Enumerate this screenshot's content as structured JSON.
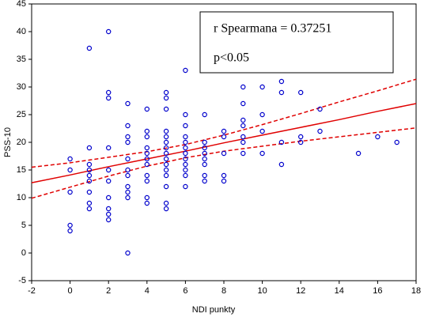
{
  "chart_data": {
    "type": "scatter",
    "xlabel": "NDI punkty",
    "ylabel": "PSS-10",
    "xlim": [
      -2,
      18
    ],
    "ylim": [
      -5,
      45
    ],
    "xticks": [
      -2,
      0,
      2,
      4,
      6,
      8,
      10,
      12,
      14,
      16,
      18
    ],
    "yticks": [
      -5,
      0,
      5,
      10,
      15,
      20,
      25,
      30,
      35,
      40,
      45
    ],
    "annotations": [
      "r Spearmana = 0.37251",
      "p<0.05"
    ],
    "points": {
      "color": "#0000cc",
      "x": [
        0,
        0,
        0,
        0,
        0,
        1,
        1,
        1,
        1,
        1,
        1,
        1,
        1,
        1,
        2,
        2,
        2,
        2,
        2,
        2,
        2,
        2,
        2,
        2,
        3,
        3,
        3,
        3,
        3,
        3,
        3,
        3,
        3,
        3,
        3,
        4,
        4,
        4,
        4,
        4,
        4,
        4,
        4,
        4,
        4,
        4,
        5,
        5,
        5,
        5,
        5,
        5,
        5,
        5,
        5,
        5,
        5,
        5,
        5,
        5,
        5,
        6,
        6,
        6,
        6,
        6,
        6,
        6,
        6,
        6,
        6,
        6,
        6,
        7,
        7,
        7,
        7,
        7,
        7,
        7,
        7,
        8,
        8,
        8,
        8,
        8,
        9,
        9,
        9,
        9,
        9,
        9,
        9,
        10,
        10,
        10,
        10,
        11,
        11,
        11,
        11,
        12,
        12,
        12,
        13,
        13,
        15,
        16,
        17
      ],
      "y": [
        17,
        15,
        11,
        5,
        4,
        37,
        19,
        16,
        15,
        14,
        13,
        11,
        9,
        8,
        40,
        29,
        28,
        19,
        15,
        13,
        10,
        8,
        7,
        6,
        27,
        23,
        21,
        20,
        17,
        15,
        14,
        12,
        11,
        10,
        0,
        26,
        22,
        21,
        19,
        18,
        17,
        16,
        14,
        13,
        10,
        9,
        29,
        28,
        26,
        22,
        21,
        20,
        19,
        18,
        17,
        16,
        15,
        14,
        12,
        9,
        8,
        33,
        25,
        23,
        21,
        20,
        19,
        18,
        17,
        16,
        15,
        14,
        12,
        25,
        20,
        19,
        18,
        17,
        16,
        14,
        13,
        22,
        21,
        18,
        14,
        13,
        30,
        27,
        24,
        23,
        21,
        20,
        18,
        30,
        25,
        22,
        18,
        31,
        29,
        20,
        16,
        29,
        21,
        20,
        26,
        22,
        18,
        21,
        20
      ]
    },
    "fit": {
      "color": "#e00000",
      "x": [
        -2,
        0,
        2,
        4,
        6,
        8,
        10,
        12,
        14,
        16,
        18
      ],
      "y": [
        12.7,
        14.1,
        15.6,
        17.0,
        18.4,
        19.9,
        21.3,
        22.7,
        24.1,
        25.6,
        27.0
      ]
    },
    "upper": {
      "color": "#e00000",
      "x": [
        -2,
        0,
        2,
        4,
        6,
        8,
        10,
        12,
        14,
        16,
        18
      ],
      "y": [
        15.5,
        16.3,
        17.3,
        18.3,
        19.6,
        21.3,
        23.2,
        25.2,
        27.3,
        29.3,
        31.4
      ]
    },
    "lower": {
      "color": "#e00000",
      "x": [
        -2,
        0,
        2,
        4,
        6,
        8,
        10,
        12,
        14,
        16,
        18
      ],
      "y": [
        9.9,
        11.9,
        13.9,
        15.7,
        17.2,
        18.4,
        19.3,
        20.2,
        21.0,
        21.8,
        22.6
      ]
    }
  }
}
